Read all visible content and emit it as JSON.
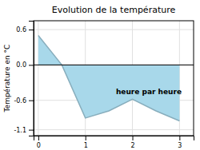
{
  "chart_data": {
    "type": "area",
    "title": "Evolution de la température",
    "xlabel": "heure par heure",
    "ylabel": "Température en °C",
    "x": [
      0,
      0.5,
      1.0,
      1.5,
      2.0,
      2.5,
      3.0
    ],
    "values": [
      0.5,
      0.0,
      -0.9,
      -0.78,
      -0.58,
      -0.78,
      -0.95
    ],
    "xlim": [
      -0.1,
      3.3
    ],
    "ylim": [
      -1.2,
      0.75
    ],
    "xticks": [
      0,
      1,
      2,
      3
    ],
    "yticks": [
      -1.1,
      -0.6,
      {
        "value": 0.0,
        "label": "0.0"
      },
      0.6
    ],
    "color": "#a8d8ea",
    "grid": true
  }
}
